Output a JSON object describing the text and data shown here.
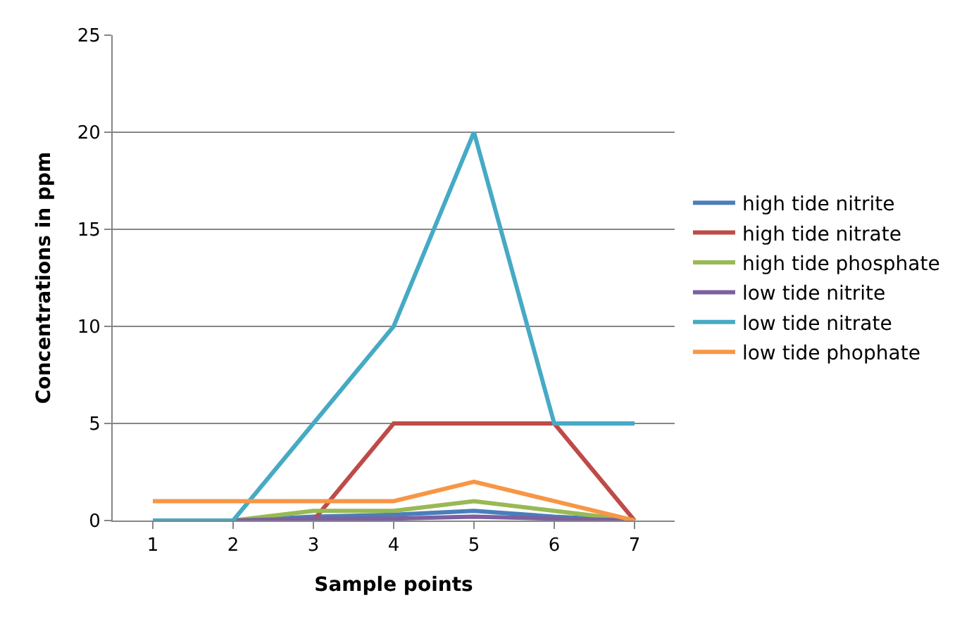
{
  "chart_data": {
    "type": "line",
    "xlabel": "Sample points",
    "ylabel": "Concentrations in ppm",
    "categories": [
      "1",
      "2",
      "3",
      "4",
      "5",
      "6",
      "7"
    ],
    "ylim": [
      0,
      25
    ],
    "yticks": [
      0,
      5,
      10,
      15,
      20,
      25
    ],
    "grid": "y",
    "legend": "right",
    "marker": "none",
    "series": [
      {
        "name": "high tide nitrite",
        "color": "#4a7ebb",
        "values": [
          0,
          0,
          0.2,
          0.3,
          0.5,
          0.2,
          0
        ]
      },
      {
        "name": "high tide nitrate",
        "color": "#be4b48",
        "values": [
          0,
          0,
          0,
          5,
          5,
          5,
          0
        ]
      },
      {
        "name": "high tide phosphate",
        "color": "#98b954",
        "values": [
          0,
          0,
          0.5,
          0.5,
          1,
          0.5,
          0
        ]
      },
      {
        "name": "low tide nitrite",
        "color": "#7d60a0",
        "values": [
          0,
          0,
          0.1,
          0.1,
          0.2,
          0.1,
          0
        ]
      },
      {
        "name": "low tide nitrate",
        "color": "#46aac5",
        "values": [
          0,
          0,
          5,
          10,
          20,
          5,
          5
        ]
      },
      {
        "name": "low tide phophate",
        "color": "#f79646",
        "values": [
          1,
          1,
          1,
          1,
          2,
          1,
          0
        ]
      }
    ]
  }
}
